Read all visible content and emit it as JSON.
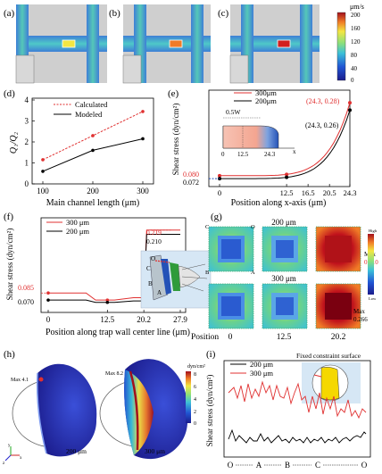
{
  "panels": {
    "a": "(a)",
    "b": "(b)",
    "c": "(c)",
    "d": "(d)",
    "e": "(e)",
    "f": "(f)",
    "g": "(g)",
    "h": "(h)",
    "i": "(i)"
  },
  "colorbar_top": {
    "unit": "μm/s",
    "ticks": [
      "200",
      "160",
      "120",
      "80",
      "40",
      "0"
    ]
  },
  "chart_data": [
    {
      "id": "d",
      "type": "line",
      "x": [
        100,
        200,
        300
      ],
      "series": [
        {
          "name": "Calculated",
          "values": [
            1.15,
            2.3,
            3.45
          ],
          "color": "#e03030"
        },
        {
          "name": "Modeled",
          "values": [
            0.6,
            1.6,
            2.15
          ],
          "color": "#000000"
        }
      ],
      "xlabel": "Main channel length (μm)",
      "ylabel": "Q₁/Q₂",
      "xticks": [
        "100",
        "200",
        "300"
      ],
      "yticks": [
        "0",
        "1",
        "2",
        "3",
        "4"
      ],
      "ylim": [
        0,
        4
      ]
    },
    {
      "id": "e",
      "type": "line",
      "x": [
        0,
        12.5,
        16.5,
        20.5,
        24.3
      ],
      "series": [
        {
          "name": "300μm",
          "values": [
            0.08,
            0.082,
            0.095,
            0.13,
            0.28
          ],
          "color": "#e03030"
        },
        {
          "name": "200μm",
          "values": [
            0.072,
            0.074,
            0.085,
            0.115,
            0.26
          ],
          "color": "#000000"
        }
      ],
      "xlabel": "Position along x-axis (μm)",
      "ylabel": "Shear stress (dyn/cm²)",
      "xticks": [
        "0",
        "12.5",
        "16.5",
        "20.5",
        "24.3"
      ],
      "ytick_labels": [
        "0.080",
        "0.072"
      ],
      "annotations": [
        "(24.3, 0.28)",
        "(24.3, 0.26)",
        "0.5W",
        "0",
        "12.5",
        "24.3",
        "x"
      ]
    },
    {
      "id": "f",
      "type": "line",
      "x": [
        0,
        5,
        10,
        12.5,
        15,
        20.2,
        21,
        27.9
      ],
      "series": [
        {
          "name": "300 μm",
          "values": [
            0.085,
            0.085,
            0.07,
            0.07,
            0.075,
            0.075,
            0.219,
            0.219
          ],
          "color": "#e03030"
        },
        {
          "name": "200 μm",
          "values": [
            0.07,
            0.07,
            0.065,
            0.065,
            0.068,
            0.068,
            0.21,
            0.21
          ],
          "color": "#000000"
        }
      ],
      "xlabel": "Position along trap wall center line (μm)",
      "ylabel": "Shear stress (dyn/cm²)",
      "xticks": [
        "0",
        "12.5",
        "20.2",
        "27.9"
      ],
      "ytick_labels": [
        "0.085",
        "0.070",
        "0.219",
        "0.210"
      ],
      "inset_labels": [
        "O",
        "A",
        "B",
        "C"
      ]
    },
    {
      "id": "i",
      "type": "line",
      "series": [
        {
          "name": "200 μm",
          "color": "#000000"
        },
        {
          "name": "300 μm",
          "color": "#e03030"
        }
      ],
      "xlabel": "",
      "ylabel": "Shear stress (dyn/cm²)",
      "xticks": [
        "O",
        "A",
        "B",
        "C",
        "O"
      ],
      "inset_title": "Fixed constraint surface"
    }
  ],
  "g": {
    "title_200": "200 μm",
    "title_300": "300 μm",
    "positions": [
      "Position",
      "0",
      "12.5",
      "20.2"
    ],
    "max_200": "Max\n0.210",
    "max_300": "Max\n0.266",
    "max_200_val": "0.210",
    "max_300_val": "0.266",
    "corner_labels": [
      "C",
      "O",
      "B",
      "A"
    ],
    "colorbar": [
      "High",
      "Low"
    ]
  },
  "h": {
    "max_left": "Max 4.1",
    "max_right": "Max 8.2",
    "label_left": "200 μm",
    "label_right": "300 μm",
    "unit": "dyn/cm²",
    "ticks": [
      "8",
      "6",
      "4",
      "2",
      "0"
    ],
    "axes": [
      "x",
      "y",
      "z"
    ]
  },
  "colors": {
    "red": "#e03030",
    "dark": "#000000",
    "blue_dark": "#1a237e",
    "yellow": "#f5d800"
  }
}
